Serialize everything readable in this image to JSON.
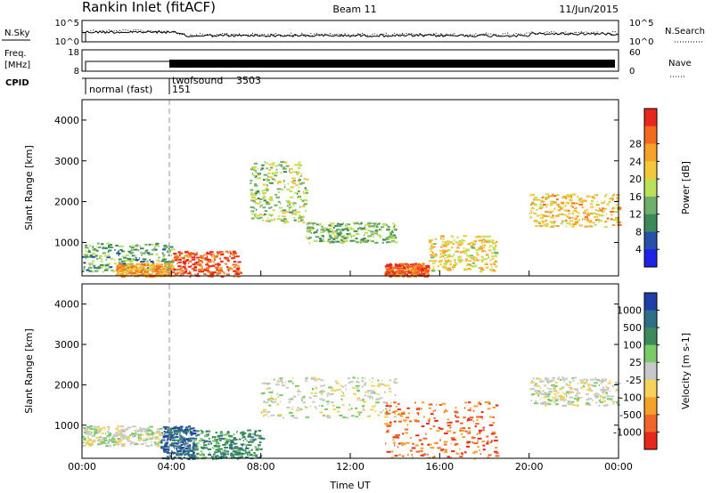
{
  "header": {
    "station": "Rankin Inlet (fitACF)",
    "beam": "Beam 11",
    "date": "11/Jun/2015"
  },
  "panels": {
    "nsky": {
      "left_label": "N.Sky",
      "right_label": "N.Search",
      "left_ticks": [
        "10^5",
        "10^0"
      ],
      "right_ticks": [
        "10^5",
        "10^0"
      ]
    },
    "freq": {
      "left_label_1": "Freq.",
      "left_label_2": "[MHz]",
      "right_label": "Nave",
      "left_ticks": [
        "18",
        "8"
      ],
      "right_ticks": [
        "60",
        "0"
      ]
    },
    "cpid": {
      "label": "CPID",
      "mode_1": "normal (fast)",
      "mode_1_id": "151",
      "mode_2": "twofsound",
      "mode_2_id": "3503"
    }
  },
  "colors": {
    "power": [
      "#1f22e6",
      "#2750a8",
      "#3c8a5a",
      "#6fae6d",
      "#bde05a",
      "#f3c83c",
      "#f6a12a",
      "#f26a1e",
      "#e8281c"
    ],
    "velocity": [
      "#1f3ea8",
      "#2f6f86",
      "#3d8a5c",
      "#7cc96a",
      "#c8c8c8",
      "#f6d45c",
      "#f6a12a",
      "#f0662a",
      "#e8281c"
    ]
  },
  "chart_data": [
    {
      "type": "heatmap",
      "name": "Power",
      "xlabel": "Time UT",
      "ylabel": "Slant Range [km]",
      "x_ticks": [
        "00:00",
        "04:00",
        "08:00",
        "12:00",
        "16:00",
        "20:00",
        "00:00"
      ],
      "y_ticks": [
        1000,
        2000,
        3000,
        4000
      ],
      "ylim": [
        180,
        4500
      ],
      "colorbar_label": "Power [dB]",
      "colorbar_ticks": [
        "4",
        "8",
        "12",
        "16",
        "20",
        "24",
        "28"
      ],
      "colorbar_range": [
        0,
        30
      ],
      "features": [
        {
          "t": [
            0.0,
            4.0
          ],
          "r": [
            300,
            1000
          ],
          "value": 10
        },
        {
          "t": [
            1.5,
            4.0
          ],
          "r": [
            180,
            500
          ],
          "value": 22
        },
        {
          "t": [
            4.0,
            7.0
          ],
          "r": [
            180,
            800
          ],
          "value": 28
        },
        {
          "t": [
            7.5,
            10.0
          ],
          "r": [
            1500,
            3000
          ],
          "value": 14
        },
        {
          "t": [
            10.0,
            14.0
          ],
          "r": [
            1000,
            1500
          ],
          "value": 12
        },
        {
          "t": [
            13.5,
            15.5
          ],
          "r": [
            180,
            500
          ],
          "value": 28
        },
        {
          "t": [
            15.5,
            18.5
          ],
          "r": [
            300,
            1200
          ],
          "value": 18
        },
        {
          "t": [
            20.0,
            24.0
          ],
          "r": [
            1400,
            2200
          ],
          "value": 20
        }
      ]
    },
    {
      "type": "heatmap",
      "name": "Velocity",
      "xlabel": "Time UT",
      "ylabel": "Slant Range [km]",
      "x_ticks": [
        "00:00",
        "04:00",
        "08:00",
        "12:00",
        "16:00",
        "20:00",
        "00:00"
      ],
      "y_ticks": [
        1000,
        2000,
        3000,
        4000
      ],
      "ylim": [
        180,
        4500
      ],
      "colorbar_label": "Velocity [m s-1]",
      "colorbar_ticks": [
        "1000",
        "500",
        "100",
        "25",
        "-25",
        "-100",
        "-500",
        "-1000"
      ],
      "features": [
        {
          "t": [
            0.0,
            3.5
          ],
          "r": [
            500,
            1000
          ],
          "value": 0
        },
        {
          "t": [
            3.5,
            5.0
          ],
          "r": [
            180,
            1000
          ],
          "value": 500
        },
        {
          "t": [
            5.0,
            8.0
          ],
          "r": [
            180,
            900
          ],
          "value": 100
        },
        {
          "t": [
            8.0,
            14.0
          ],
          "r": [
            1200,
            2200
          ],
          "value": 0
        },
        {
          "t": [
            13.5,
            18.5
          ],
          "r": [
            180,
            1600
          ],
          "value": -500
        },
        {
          "t": [
            20.0,
            24.0
          ],
          "r": [
            1500,
            2200
          ],
          "value": 0
        }
      ]
    }
  ]
}
